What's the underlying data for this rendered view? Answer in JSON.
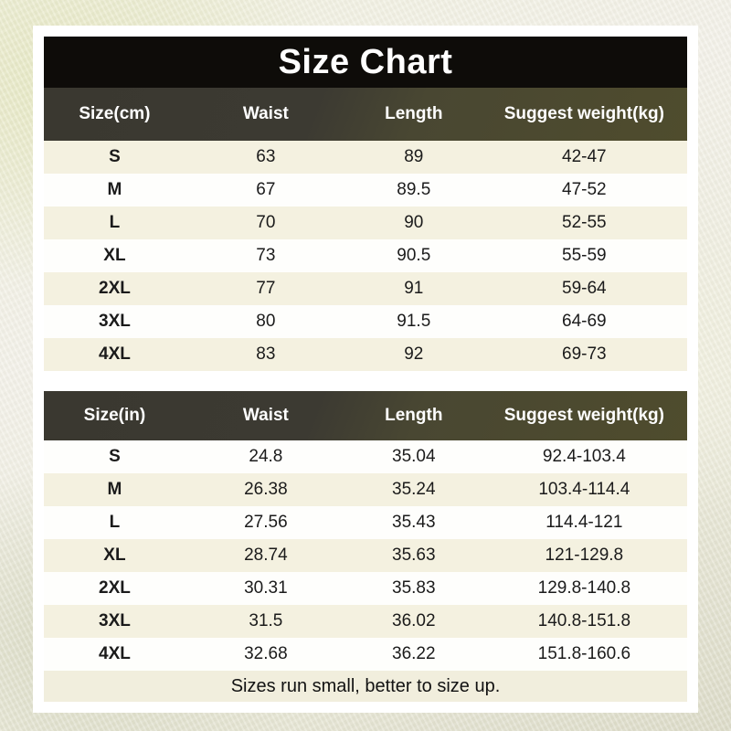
{
  "title": "Size Chart",
  "footer_note": "Sizes run small, better to size up.",
  "colors": {
    "title_bar_black": "#0e0c09",
    "header_olive": "#4f4c2d",
    "header_dark_gray": "#3a3830",
    "row_cream": "#f4f1e0",
    "row_white": "#fefefc",
    "panel_white": "#ffffff",
    "background_cream": "#eeeddd",
    "text_dark": "#1b1b1b"
  },
  "tables": [
    {
      "unit": "cm",
      "headers": [
        "Size(cm)",
        "Waist",
        "Length",
        "Suggest weight(kg)"
      ],
      "rows": [
        [
          "S",
          "63",
          "89",
          "42-47"
        ],
        [
          "M",
          "67",
          "89.5",
          "47-52"
        ],
        [
          "L",
          "70",
          "90",
          "52-55"
        ],
        [
          "XL",
          "73",
          "90.5",
          "55-59"
        ],
        [
          "2XL",
          "77",
          "91",
          "59-64"
        ],
        [
          "3XL",
          "80",
          "91.5",
          "64-69"
        ],
        [
          "4XL",
          "83",
          "92",
          "69-73"
        ]
      ]
    },
    {
      "unit": "in",
      "headers": [
        "Size(in)",
        "Waist",
        "Length",
        "Suggest weight(kg)"
      ],
      "rows": [
        [
          "S",
          "24.8",
          "35.04",
          "92.4-103.4"
        ],
        [
          "M",
          "26.38",
          "35.24",
          "103.4-114.4"
        ],
        [
          "L",
          "27.56",
          "35.43",
          "114.4-121"
        ],
        [
          "XL",
          "28.74",
          "35.63",
          "121-129.8"
        ],
        [
          "2XL",
          "30.31",
          "35.83",
          "129.8-140.8"
        ],
        [
          "3XL",
          "31.5",
          "36.02",
          "140.8-151.8"
        ],
        [
          "4XL",
          "32.68",
          "36.22",
          "151.8-160.6"
        ]
      ]
    }
  ],
  "chart_data": [
    {
      "type": "table",
      "title": "Size Chart (cm)",
      "columns": [
        "Size(cm)",
        "Waist",
        "Length",
        "Suggest weight(kg)"
      ],
      "rows": [
        [
          "S",
          63,
          89,
          "42-47"
        ],
        [
          "M",
          67,
          89.5,
          "47-52"
        ],
        [
          "L",
          70,
          90,
          "52-55"
        ],
        [
          "XL",
          73,
          90.5,
          "55-59"
        ],
        [
          "2XL",
          77,
          91,
          "59-64"
        ],
        [
          "3XL",
          80,
          91.5,
          "64-69"
        ],
        [
          "4XL",
          83,
          92,
          "69-73"
        ]
      ]
    },
    {
      "type": "table",
      "title": "Size Chart (in)",
      "columns": [
        "Size(in)",
        "Waist",
        "Length",
        "Suggest weight(kg)"
      ],
      "rows": [
        [
          "S",
          24.8,
          35.04,
          "92.4-103.4"
        ],
        [
          "M",
          26.38,
          35.24,
          "103.4-114.4"
        ],
        [
          "L",
          27.56,
          35.43,
          "114.4-121"
        ],
        [
          "XL",
          28.74,
          35.63,
          "121-129.8"
        ],
        [
          "2XL",
          30.31,
          35.83,
          "129.8-140.8"
        ],
        [
          "3XL",
          31.5,
          36.02,
          "140.8-151.8"
        ],
        [
          "4XL",
          32.68,
          36.22,
          "151.8-160.6"
        ]
      ]
    }
  ]
}
